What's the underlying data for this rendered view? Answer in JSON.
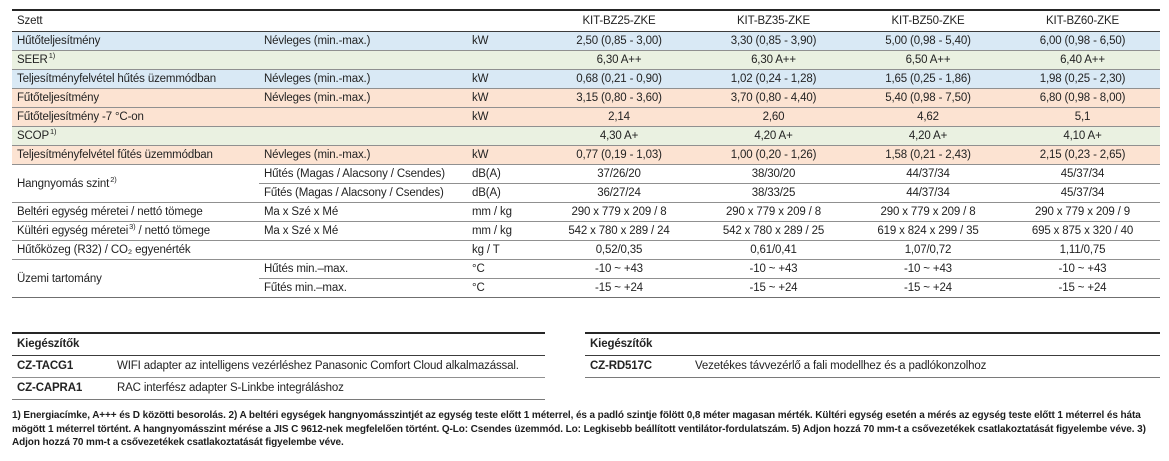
{
  "colors": {
    "blue": "#d9e9f5",
    "green": "#eaf1e1",
    "salmon": "#fce3d2",
    "white": "#ffffff"
  },
  "spec_table": {
    "corner_label": "Szett",
    "models": [
      "KIT-BZ25-ZKE",
      "KIT-BZ35-ZKE",
      "KIT-BZ50-ZKE",
      "KIT-BZ60-ZKE"
    ],
    "rows": [
      {
        "bg": "blue",
        "label": "Hűtőteljesítmény",
        "sup": "",
        "label_post": "",
        "sub": "Névleges (min.-max.)",
        "unit": "kW",
        "bold": false,
        "values": [
          "2,50 (0,85 - 3,00)",
          "3,30 (0,85 - 3,90)",
          "5,00 (0,98 - 5,40)",
          "6,00 (0,98 - 6,50)"
        ]
      },
      {
        "bg": "green",
        "label": "SEER",
        "sup": "1)",
        "label_post": "",
        "sub": "",
        "unit": "",
        "bold": true,
        "values": [
          "6,30 A++",
          "6,30 A++",
          "6,50 A++",
          "6,40 A++"
        ]
      },
      {
        "bg": "blue",
        "label": "Teljesítményfelvétel hűtés üzemmódban",
        "sup": "",
        "label_post": "",
        "sub": "Névleges (min.-max.)",
        "unit": "kW",
        "bold": false,
        "values": [
          "0,68 (0,21 - 0,90)",
          "1,02 (0,24 - 1,28)",
          "1,65 (0,25 - 1,86)",
          "1,98 (0,25 - 2,30)"
        ]
      },
      {
        "bg": "salmon",
        "label": "Fűtőteljesítmény",
        "sup": "",
        "label_post": "",
        "sub": "Névleges (min.-max.)",
        "unit": "kW",
        "bold": false,
        "values": [
          "3,15 (0,80 - 3,60)",
          "3,70 (0,80 - 4,40)",
          "5,40 (0,98 - 7,50)",
          "6,80 (0,98 - 8,00)"
        ]
      },
      {
        "bg": "salmon",
        "label": "Fűtőteljesítmény -7 °C-on",
        "sup": "",
        "label_post": "",
        "sub": "",
        "unit": "kW",
        "bold": false,
        "values": [
          "2,14",
          "2,60",
          "4,62",
          "5,1"
        ]
      },
      {
        "bg": "green",
        "label": "SCOP",
        "sup": "1)",
        "label_post": "",
        "sub": "",
        "unit": "",
        "bold": true,
        "values": [
          "4,30 A+",
          "4,20 A+",
          "4,20 A+",
          "4,10 A+"
        ]
      },
      {
        "bg": "salmon",
        "label": "Teljesítményfelvétel fűtés üzemmódban",
        "sup": "",
        "label_post": "",
        "sub": "Névleges (min.-max.)",
        "unit": "kW",
        "bold": false,
        "values": [
          "0,77 (0,19 - 1,03)",
          "1,00 (0,20 - 1,26)",
          "1,58 (0,21 - 2,43)",
          "2,15 (0,23 - 2,65)"
        ]
      },
      {
        "bg": "white",
        "label": "Hangnyomás szint",
        "sup": "2)",
        "label_post": "",
        "rowspan": 2,
        "sub": "Hűtés (Magas / Alacsony / Csendes)",
        "unit": "dB(A)",
        "bold": false,
        "values": [
          "37/26/20",
          "38/30/20",
          "44/37/34",
          "45/37/34"
        ]
      },
      {
        "bg": "white",
        "cont": true,
        "sub": "Fűtés (Magas / Alacsony / Csendes)",
        "unit": "dB(A)",
        "bold": false,
        "values": [
          "36/27/24",
          "38/33/25",
          "44/37/34",
          "45/37/34"
        ]
      },
      {
        "bg": "white",
        "label": "Beltéri egység méretei / nettó tömege",
        "sup": "",
        "label_post": "",
        "sub": "Ma x Szé x Mé",
        "unit": "mm / kg",
        "bold": false,
        "values": [
          "290 x 779 x 209 / 8",
          "290 x 779 x 209 / 8",
          "290 x 779 x 209 / 8",
          "290 x 779 x 209 / 9"
        ]
      },
      {
        "bg": "white",
        "label": "Kültéri egység méretei",
        "sup": "3)",
        "label_post": " / nettó tömege",
        "sub": "Ma x Szé x Mé",
        "unit": "mm / kg",
        "bold": false,
        "values": [
          "542 x 780 x 289 / 24",
          "542 x 780 x 289 / 25",
          "619 x 824 x 299 / 35",
          "695 x 875 x 320 / 40"
        ]
      },
      {
        "bg": "white",
        "label": "Hűtőközeg (R32) / CO₂ egyenérték",
        "sup": "",
        "label_post": "",
        "sub": "",
        "unit": "kg / T",
        "bold": false,
        "values": [
          "0,52/0,35",
          "0,61/0,41",
          "1,07/0,72",
          "1,11/0,75"
        ]
      },
      {
        "bg": "white",
        "label": "Üzemi tartomány",
        "sup": "",
        "label_post": "",
        "rowspan": 2,
        "sub": "Hűtés min.–max.",
        "unit": "°C",
        "bold": false,
        "values": [
          "-10 ~ +43",
          "-10 ~ +43",
          "-10 ~ +43",
          "-10 ~ +43"
        ]
      },
      {
        "bg": "white",
        "cont": true,
        "sub": "Fűtés min.–max.",
        "unit": "°C",
        "bold": false,
        "values": [
          "-15 ~ +24",
          "-15 ~ +24",
          "-15 ~ +24",
          "-15 ~ +24"
        ]
      }
    ]
  },
  "accessories_left": {
    "title": "Kiegészítők",
    "rows": [
      {
        "code": "CZ-TACG1",
        "desc": "WIFI adapter az intelligens vezérléshez Panasonic Comfort Cloud alkalmazással."
      },
      {
        "code": "CZ-CAPRA1",
        "desc": "RAC interfész adapter S-Linkbe integráláshoz"
      }
    ]
  },
  "accessories_right": {
    "title": "Kiegészítők",
    "rows": [
      {
        "code": "CZ-RD517C",
        "desc": "Vezetékes távvezérlő a fali modellhez és a padlókonzolhoz"
      }
    ]
  },
  "footnotes": {
    "text": "1) Energiacímke, A+++ és D közötti besorolás. 2) A beltéri egységek hangnyomásszintjét az egység teste előtt 1 méterrel, és a padló szintje fölött 0,8 méter magasan mérték. Kültéri egység esetén a mérés az egység teste előtt 1 méterrel és háta mögött 1 méterrel történt. A hangnyomásszint mérése a JIS C 9612-nek megfelelően történt. Q-Lo: Csendes üzemmód. Lo: Legkisebb beállított ventilátor-fordulatszám. 5) Adjon hozzá 70 mm-t a csővezetékek csatlakoztatását figyelembe véve. 3) Adjon hozzá 70 mm-t a csővezetékek csatlakoztatását figyelembe véve."
  }
}
